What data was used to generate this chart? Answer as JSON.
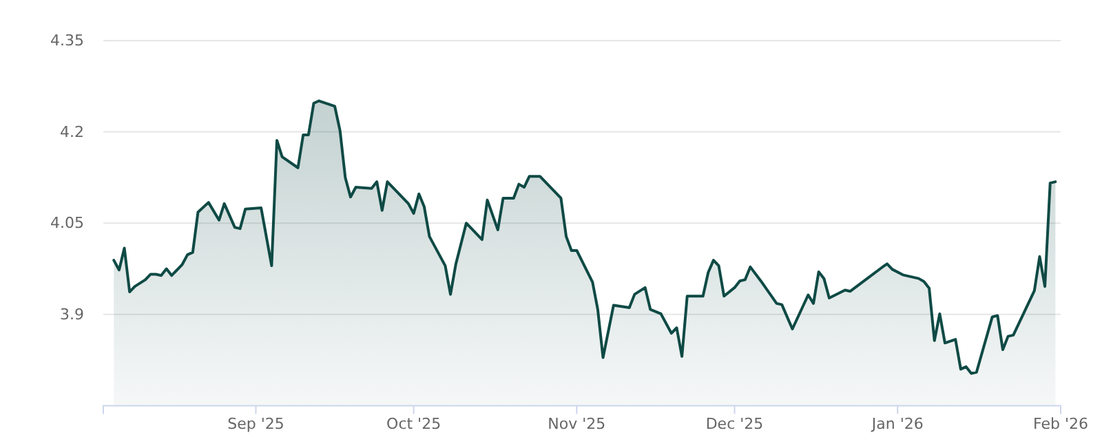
{
  "chart_data": {
    "type": "area",
    "x": [
      "2025-08-05",
      "2025-08-06",
      "2025-08-07",
      "2025-08-08",
      "2025-08-09",
      "2025-08-11",
      "2025-08-12",
      "2025-08-13",
      "2025-08-14",
      "2025-08-15",
      "2025-08-16",
      "2025-08-18",
      "2025-08-19",
      "2025-08-20",
      "2025-08-21",
      "2025-08-23",
      "2025-08-25",
      "2025-08-26",
      "2025-08-28",
      "2025-08-29",
      "2025-08-30",
      "2025-09-02",
      "2025-09-04",
      "2025-09-05",
      "2025-09-06",
      "2025-09-09",
      "2025-09-10",
      "2025-09-11",
      "2025-09-12",
      "2025-09-13",
      "2025-09-16",
      "2025-09-17",
      "2025-09-18",
      "2025-09-19",
      "2025-09-20",
      "2025-09-23",
      "2025-09-24",
      "2025-09-25",
      "2025-09-26",
      "2025-09-30",
      "2025-10-01",
      "2025-10-02",
      "2025-10-03",
      "2025-10-04",
      "2025-10-07",
      "2025-10-08",
      "2025-10-09",
      "2025-10-11",
      "2025-10-14",
      "2025-10-15",
      "2025-10-17",
      "2025-10-18",
      "2025-10-20",
      "2025-10-21",
      "2025-10-22",
      "2025-10-23",
      "2025-10-25",
      "2025-10-29",
      "2025-10-30",
      "2025-10-31",
      "2025-11-01",
      "2025-11-04",
      "2025-11-05",
      "2025-11-06",
      "2025-11-08",
      "2025-11-11",
      "2025-11-12",
      "2025-11-14",
      "2025-11-15",
      "2025-11-17",
      "2025-11-19",
      "2025-11-20",
      "2025-11-21",
      "2025-11-22",
      "2025-11-25",
      "2025-11-26",
      "2025-11-27",
      "2025-11-28",
      "2025-11-29",
      "2025-12-01",
      "2025-12-02",
      "2025-12-03",
      "2025-12-04",
      "2025-12-06",
      "2025-12-09",
      "2025-12-10",
      "2025-12-11",
      "2025-12-12",
      "2025-12-15",
      "2025-12-16",
      "2025-12-17",
      "2025-12-18",
      "2025-12-19",
      "2025-12-22",
      "2025-12-23",
      "2025-12-29",
      "2025-12-30",
      "2025-12-31",
      "2026-01-02",
      "2026-01-05",
      "2026-01-06",
      "2026-01-07",
      "2026-01-08",
      "2026-01-09",
      "2026-01-10",
      "2026-01-12",
      "2026-01-13",
      "2026-01-14",
      "2026-01-15",
      "2026-01-16",
      "2026-01-19",
      "2026-01-20",
      "2026-01-21",
      "2026-01-22",
      "2026-01-23",
      "2026-01-27",
      "2026-01-28",
      "2026-01-29",
      "2026-01-30",
      "2026-01-31"
    ],
    "series": [
      {
        "color": "#0f4a45",
        "values": [
          3.989,
          3.973,
          4.009,
          3.937,
          3.946,
          3.957,
          3.966,
          3.966,
          3.964,
          3.975,
          3.964,
          3.982,
          3.998,
          4.002,
          4.068,
          4.084,
          4.055,
          4.082,
          4.043,
          4.041,
          4.073,
          4.075,
          3.98,
          4.186,
          4.159,
          4.141,
          4.195,
          4.195,
          4.247,
          4.251,
          4.242,
          4.202,
          4.125,
          4.093,
          4.109,
          4.107,
          4.118,
          4.071,
          4.118,
          4.082,
          4.066,
          4.098,
          4.077,
          4.028,
          3.98,
          3.933,
          3.982,
          4.05,
          4.023,
          4.088,
          4.039,
          4.091,
          4.091,
          4.114,
          4.109,
          4.127,
          4.127,
          4.091,
          4.028,
          4.005,
          4.005,
          3.953,
          3.908,
          3.829,
          3.915,
          3.911,
          3.933,
          3.944,
          3.908,
          3.901,
          3.869,
          3.878,
          3.831,
          3.93,
          3.93,
          3.969,
          3.989,
          3.98,
          3.93,
          3.944,
          3.955,
          3.957,
          3.978,
          3.955,
          3.918,
          3.916,
          3.896,
          3.876,
          3.932,
          3.918,
          3.97,
          3.959,
          3.927,
          3.94,
          3.938,
          3.977,
          3.983,
          3.974,
          3.965,
          3.959,
          3.954,
          3.943,
          3.857,
          3.901,
          3.853,
          3.859,
          3.81,
          3.814,
          3.803,
          3.805,
          3.896,
          3.898,
          3.842,
          3.864,
          3.866,
          3.939,
          3.995,
          3.946,
          4.116,
          4.118
        ]
      }
    ],
    "xlim": [
      "2025-08-03",
      "2026-02-01"
    ],
    "xticks": [
      {
        "value": "2025-09-01",
        "label": "Sep '25"
      },
      {
        "value": "2025-10-01",
        "label": "Oct '25"
      },
      {
        "value": "2025-11-01",
        "label": "Nov '25"
      },
      {
        "value": "2025-12-01",
        "label": "Dec '25"
      },
      {
        "value": "2026-01-01",
        "label": "Jan '26"
      },
      {
        "value": "2026-02-01",
        "label": "Feb '26"
      }
    ],
    "ylim": [
      3.75,
      4.35
    ],
    "yticks": [
      3.9,
      4.05,
      4.2,
      4.35
    ],
    "grid": "y"
  }
}
